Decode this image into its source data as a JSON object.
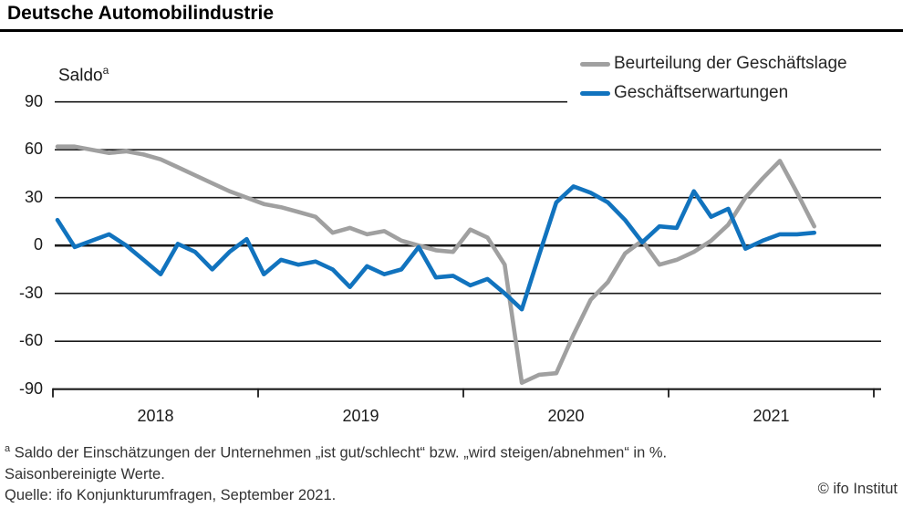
{
  "title": "Deutsche Automobilindustrie",
  "y_axis_title": "Saldo",
  "y_axis_title_sup": "a",
  "footnotes": {
    "marker": "a",
    "line1": " Saldo der Einschätzungen der Unternehmen „ist gut/schlecht“ bzw. „wird steigen/abnehmen“ in %.",
    "line2": "Saisonbereinigte Werte.",
    "source": "Quelle: ifo Konjunkturumfragen, September 2021."
  },
  "copyright": "© ifo Institut",
  "colors": {
    "lage": "#a0a0a0",
    "erwartungen": "#1173be",
    "axis": "#1a1a1a"
  },
  "chart_data": {
    "type": "line",
    "title": "Deutsche Automobilindustrie",
    "ylabel": "Saldo",
    "ylim": [
      -90,
      90
    ],
    "grid": true,
    "legend_position": "top-right",
    "y_ticks": [
      90,
      60,
      30,
      0,
      -30,
      -60,
      -90
    ],
    "x_ticks": [
      "2018",
      "2019",
      "2020",
      "2021"
    ],
    "x_freq": "monthly",
    "x": [
      "2018-01",
      "2018-02",
      "2018-03",
      "2018-04",
      "2018-05",
      "2018-06",
      "2018-07",
      "2018-08",
      "2018-09",
      "2018-10",
      "2018-11",
      "2018-12",
      "2019-01",
      "2019-02",
      "2019-03",
      "2019-04",
      "2019-05",
      "2019-06",
      "2019-07",
      "2019-08",
      "2019-09",
      "2019-10",
      "2019-11",
      "2019-12",
      "2020-01",
      "2020-02",
      "2020-03",
      "2020-04",
      "2020-05",
      "2020-06",
      "2020-07",
      "2020-08",
      "2020-09",
      "2020-10",
      "2020-11",
      "2020-12",
      "2021-01",
      "2021-02",
      "2021-03",
      "2021-04",
      "2021-05",
      "2021-06",
      "2021-07",
      "2021-08",
      "2021-09"
    ],
    "series": [
      {
        "name": "Beurteilung der Geschäftslage",
        "color": "#a0a0a0",
        "values": [
          62,
          62,
          60,
          58,
          59,
          57,
          54,
          49,
          44,
          39,
          34,
          30,
          26,
          24,
          21,
          18,
          8,
          11,
          7,
          9,
          3,
          0,
          -3,
          -4,
          10,
          5,
          -12,
          -86,
          -81,
          -80,
          -56,
          -34,
          -23,
          -5,
          3,
          -12,
          -9,
          -4,
          3,
          13,
          30,
          42,
          53,
          33,
          12
        ]
      },
      {
        "name": "Geschäftserwartungen",
        "color": "#1173be",
        "values": [
          16,
          -1,
          3,
          7,
          0,
          -9,
          -18,
          1,
          -4,
          -15,
          -4,
          4,
          -18,
          -9,
          -12,
          -10,
          -15,
          -26,
          -13,
          -18,
          -15,
          -1,
          -20,
          -19,
          -25,
          -21,
          -30,
          -40,
          -6,
          27,
          37,
          33,
          27,
          16,
          2,
          12,
          11,
          34,
          18,
          23,
          -2,
          3,
          7,
          7,
          8
        ]
      }
    ]
  }
}
